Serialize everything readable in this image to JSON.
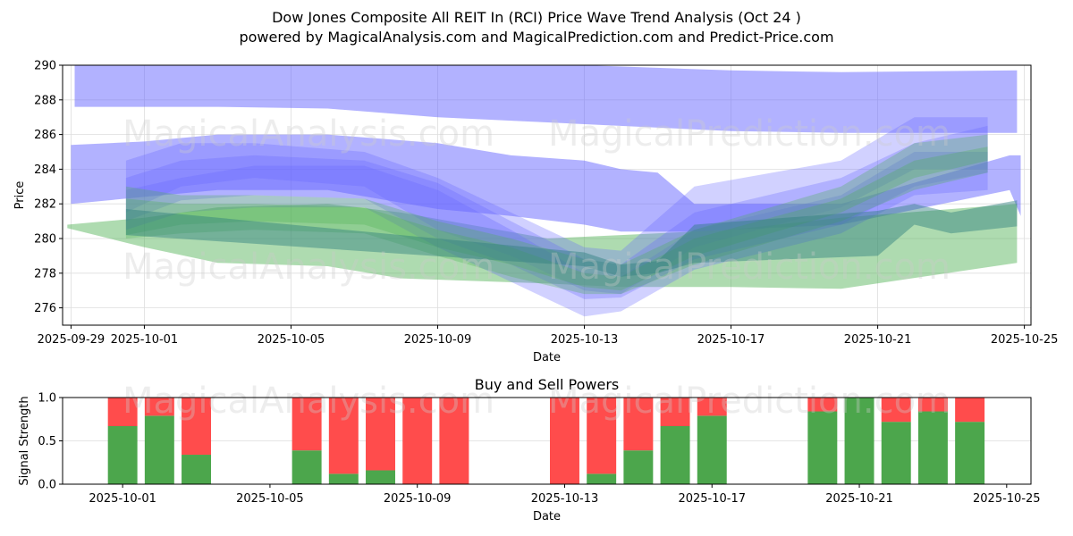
{
  "header": {
    "title": "Dow Jones Composite All REIT In (RCI) Price Wave Trend Analysis (Oct 24 )",
    "subtitle": "powered by MagicalAnalysis.com and MagicalPrediction.com and Predict-Price.com"
  },
  "watermarks": [
    "MagicalAnalysis.com",
    "MagicalPrediction.com"
  ],
  "colors": {
    "blue_band": "#6666ff",
    "green_band": "#4caf50",
    "buy": "#4ca64c",
    "sell": "#ff4c4c",
    "grid": "#dddddd"
  },
  "chart_data": [
    {
      "type": "area",
      "title": "",
      "xlabel": "Date",
      "ylabel": "Price",
      "ylim": [
        275,
        290
      ],
      "xlim": [
        "2025-09-28.77",
        "2025-10-25.18"
      ],
      "grid": true,
      "x_ticks": [
        "2025-09-29",
        "2025-10-01",
        "2025-10-05",
        "2025-10-09",
        "2025-10-13",
        "2025-10-17",
        "2025-10-21",
        "2025-10-25"
      ],
      "y_ticks": [
        276,
        278,
        280,
        282,
        284,
        286,
        288,
        290
      ],
      "bands": [
        {
          "name": "upper-blue-band",
          "color": "blue",
          "opacity": 0.5,
          "x": [
            "2025-09-29.1",
            "2025-10-01",
            "2025-10-03",
            "2025-10-06",
            "2025-10-09",
            "2025-10-13",
            "2025-10-17",
            "2025-10-20",
            "2025-10-24.8"
          ],
          "upper": [
            290,
            290,
            290,
            290,
            290,
            290,
            289.7,
            289.6,
            289.7
          ],
          "lower": [
            287.6,
            287.6,
            287.6,
            287.5,
            287.0,
            286.6,
            286.2,
            286.1,
            286.1
          ]
        },
        {
          "name": "middle-blue-band",
          "color": "blue",
          "opacity": 0.5,
          "x": [
            "2025-09-29",
            "2025-10-01",
            "2025-10-03",
            "2025-10-06",
            "2025-10-09",
            "2025-10-11",
            "2025-10-13",
            "2025-10-14",
            "2025-10-15",
            "2025-10-16",
            "2025-10-20",
            "2025-10-24.6",
            "2025-10-24.9"
          ],
          "upper": [
            285.4,
            285.6,
            286.0,
            286.0,
            285.5,
            284.8,
            284.5,
            284.0,
            283.8,
            282.0,
            282.0,
            284.8,
            284.8
          ],
          "lower": [
            282.0,
            282.4,
            282.8,
            282.8,
            281.7,
            281.3,
            280.8,
            280.4,
            280.4,
            280.4,
            280.8,
            282.8,
            281.3
          ]
        },
        {
          "name": "lower-green-band",
          "color": "green",
          "opacity": 0.45,
          "x": [
            "2025-09-28.9",
            "2025-10-01",
            "2025-10-03",
            "2025-10-06",
            "2025-10-08",
            "2025-10-12",
            "2025-10-14",
            "2025-10-17",
            "2025-10-20",
            "2025-10-24.8"
          ],
          "upper": [
            280.8,
            281.2,
            281.8,
            282.0,
            281.5,
            280.0,
            280.2,
            280.5,
            281.2,
            282.0
          ],
          "lower": [
            280.6,
            279.5,
            278.6,
            278.4,
            277.7,
            277.4,
            277.2,
            277.2,
            277.1,
            278.6
          ]
        },
        {
          "name": "wave-blue-1",
          "color": "blue",
          "opacity": 0.3,
          "x": [
            "2025-09-30.5",
            "2025-10-02",
            "2025-10-04",
            "2025-10-07",
            "2025-10-09",
            "2025-10-11",
            "2025-10-13",
            "2025-10-14",
            "2025-10-16",
            "2025-10-20",
            "2025-10-22",
            "2025-10-24"
          ],
          "upper": [
            284.5,
            285.5,
            285.5,
            285.0,
            283.5,
            281.5,
            279.5,
            279.3,
            283.0,
            284.5,
            287.0,
            287.0
          ],
          "lower": [
            281.5,
            283.0,
            283.5,
            283.0,
            280.5,
            279.0,
            277.0,
            276.8,
            279.5,
            281.8,
            284.0,
            284.0
          ]
        },
        {
          "name": "wave-blue-2",
          "color": "blue",
          "opacity": 0.3,
          "x": [
            "2025-09-30.5",
            "2025-10-02",
            "2025-10-04",
            "2025-10-07",
            "2025-10-09",
            "2025-10-11",
            "2025-10-13",
            "2025-10-14",
            "2025-10-16",
            "2025-10-20",
            "2025-10-22",
            "2025-10-24"
          ],
          "upper": [
            283.5,
            284.5,
            284.8,
            284.5,
            283.2,
            281.0,
            278.8,
            278.5,
            281.5,
            283.5,
            285.5,
            286.5
          ],
          "lower": [
            281.0,
            282.2,
            282.5,
            282.3,
            280.0,
            278.5,
            276.5,
            276.6,
            278.8,
            280.8,
            283.0,
            283.8
          ]
        },
        {
          "name": "wave-blue-3",
          "color": "blue",
          "opacity": 0.3,
          "x": [
            "2025-09-30.5",
            "2025-10-02",
            "2025-10-04",
            "2025-10-07",
            "2025-10-09",
            "2025-10-11",
            "2025-10-13",
            "2025-10-14",
            "2025-10-16",
            "2025-10-20",
            "2025-10-22",
            "2025-10-24"
          ],
          "upper": [
            282.8,
            283.5,
            284.2,
            284.2,
            282.8,
            280.5,
            278.0,
            277.8,
            280.5,
            282.5,
            285.0,
            285.0
          ],
          "lower": [
            280.5,
            281.5,
            281.8,
            281.8,
            279.5,
            277.5,
            275.5,
            275.8,
            278.2,
            280.3,
            282.5,
            282.8
          ]
        },
        {
          "name": "wave-green-1",
          "color": "green",
          "opacity": 0.3,
          "x": [
            "2025-09-30.5",
            "2025-10-02",
            "2025-10-04",
            "2025-10-07",
            "2025-10-09",
            "2025-10-11",
            "2025-10-13",
            "2025-10-14",
            "2025-10-16",
            "2025-10-20",
            "2025-10-22",
            "2025-10-24"
          ],
          "upper": [
            283.0,
            282.5,
            282.5,
            282.3,
            281.0,
            280.0,
            278.8,
            278.5,
            280.5,
            283.0,
            285.5,
            286.0
          ],
          "lower": [
            280.2,
            280.8,
            281.0,
            280.8,
            279.5,
            278.5,
            277.2,
            277.0,
            279.0,
            281.5,
            283.5,
            284.5
          ]
        },
        {
          "name": "wave-green-2",
          "color": "green",
          "opacity": 0.3,
          "x": [
            "2025-09-30.5",
            "2025-10-02",
            "2025-10-04",
            "2025-10-07",
            "2025-10-09",
            "2025-10-11",
            "2025-10-13",
            "2025-10-14",
            "2025-10-16",
            "2025-10-20",
            "2025-10-22",
            "2025-10-24"
          ],
          "upper": [
            282.3,
            282.0,
            282.0,
            281.8,
            280.5,
            279.5,
            278.0,
            277.8,
            280.0,
            282.3,
            284.5,
            285.3
          ],
          "lower": [
            280.0,
            280.3,
            280.5,
            280.3,
            279.0,
            277.8,
            276.8,
            276.8,
            278.5,
            281.0,
            282.8,
            283.8
          ]
        },
        {
          "name": "teal-band",
          "color": "teal",
          "opacity": 0.45,
          "x": [
            "2025-09-30.5",
            "2025-10-13",
            "2025-10-14",
            "2025-10-15",
            "2025-10-16",
            "2025-10-21",
            "2025-10-22",
            "2025-10-23",
            "2025-10-24.8"
          ],
          "upper": [
            281.7,
            279.2,
            278.5,
            278.7,
            280.8,
            281.6,
            282.0,
            281.5,
            282.2
          ],
          "lower": [
            280.2,
            278.4,
            277.8,
            278.0,
            278.6,
            279.0,
            280.8,
            280.3,
            280.7
          ]
        }
      ]
    },
    {
      "type": "bar",
      "stacked": true,
      "title": "Buy and Sell Powers",
      "xlabel": "Date",
      "ylabel": "Signal Strength",
      "ylim": [
        0,
        1.0
      ],
      "xlim": [
        "2025-09-29.37",
        "2025-10-25.66"
      ],
      "grid": true,
      "x_ticks": [
        "2025-10-01",
        "2025-10-05",
        "2025-10-09",
        "2025-10-13",
        "2025-10-17",
        "2025-10-21",
        "2025-10-25"
      ],
      "y_ticks": [
        "0.0",
        "0.5",
        "1.0"
      ],
      "categories": [
        "2025-10-01",
        "2025-10-02",
        "2025-10-03",
        "2025-10-06",
        "2025-10-07",
        "2025-10-08",
        "2025-10-09",
        "2025-10-10",
        "2025-10-13",
        "2025-10-14",
        "2025-10-15",
        "2025-10-16",
        "2025-10-17",
        "2025-10-20",
        "2025-10-21",
        "2025-10-22",
        "2025-10-23",
        "2025-10-24"
      ],
      "series": [
        {
          "name": "Buy",
          "values": [
            0.67,
            0.79,
            0.34,
            0.39,
            0.12,
            0.16,
            0.0,
            0.0,
            0.0,
            0.12,
            0.39,
            0.67,
            0.79,
            0.84,
            1.0,
            0.72,
            0.84,
            0.72
          ]
        },
        {
          "name": "Sell",
          "values": [
            0.33,
            0.21,
            0.66,
            0.61,
            0.88,
            0.84,
            1.0,
            1.0,
            1.0,
            0.88,
            0.61,
            0.33,
            0.21,
            0.16,
            0.0,
            0.28,
            0.16,
            0.28
          ]
        }
      ]
    }
  ]
}
